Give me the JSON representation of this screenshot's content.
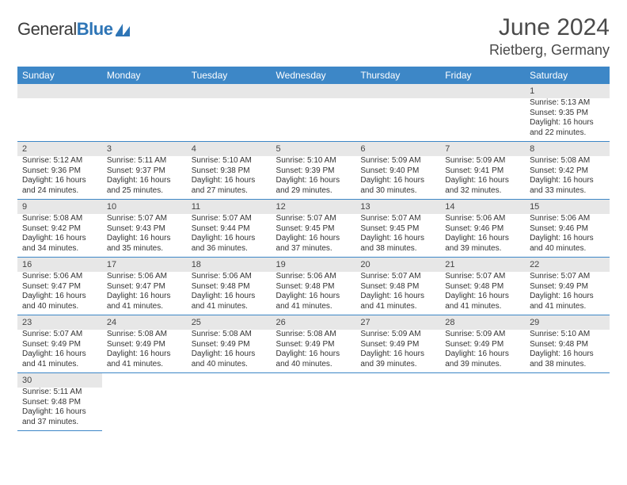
{
  "header": {
    "logo_general": "General",
    "logo_blue": "Blue",
    "month_title": "June 2024",
    "location": "Rietberg, Germany"
  },
  "colors": {
    "header_bg": "#3d87c7",
    "header_fg": "#ffffff",
    "daynum_bg": "#e7e7e7",
    "rule": "#3d87c7",
    "logo_blue": "#2e75b6"
  },
  "weekdays": [
    "Sunday",
    "Monday",
    "Tuesday",
    "Wednesday",
    "Thursday",
    "Friday",
    "Saturday"
  ],
  "weeks": [
    [
      null,
      null,
      null,
      null,
      null,
      null,
      {
        "n": "1",
        "sr": "Sunrise: 5:13 AM",
        "ss": "Sunset: 9:35 PM",
        "dl": "Daylight: 16 hours and 22 minutes."
      }
    ],
    [
      {
        "n": "2",
        "sr": "Sunrise: 5:12 AM",
        "ss": "Sunset: 9:36 PM",
        "dl": "Daylight: 16 hours and 24 minutes."
      },
      {
        "n": "3",
        "sr": "Sunrise: 5:11 AM",
        "ss": "Sunset: 9:37 PM",
        "dl": "Daylight: 16 hours and 25 minutes."
      },
      {
        "n": "4",
        "sr": "Sunrise: 5:10 AM",
        "ss": "Sunset: 9:38 PM",
        "dl": "Daylight: 16 hours and 27 minutes."
      },
      {
        "n": "5",
        "sr": "Sunrise: 5:10 AM",
        "ss": "Sunset: 9:39 PM",
        "dl": "Daylight: 16 hours and 29 minutes."
      },
      {
        "n": "6",
        "sr": "Sunrise: 5:09 AM",
        "ss": "Sunset: 9:40 PM",
        "dl": "Daylight: 16 hours and 30 minutes."
      },
      {
        "n": "7",
        "sr": "Sunrise: 5:09 AM",
        "ss": "Sunset: 9:41 PM",
        "dl": "Daylight: 16 hours and 32 minutes."
      },
      {
        "n": "8",
        "sr": "Sunrise: 5:08 AM",
        "ss": "Sunset: 9:42 PM",
        "dl": "Daylight: 16 hours and 33 minutes."
      }
    ],
    [
      {
        "n": "9",
        "sr": "Sunrise: 5:08 AM",
        "ss": "Sunset: 9:42 PM",
        "dl": "Daylight: 16 hours and 34 minutes."
      },
      {
        "n": "10",
        "sr": "Sunrise: 5:07 AM",
        "ss": "Sunset: 9:43 PM",
        "dl": "Daylight: 16 hours and 35 minutes."
      },
      {
        "n": "11",
        "sr": "Sunrise: 5:07 AM",
        "ss": "Sunset: 9:44 PM",
        "dl": "Daylight: 16 hours and 36 minutes."
      },
      {
        "n": "12",
        "sr": "Sunrise: 5:07 AM",
        "ss": "Sunset: 9:45 PM",
        "dl": "Daylight: 16 hours and 37 minutes."
      },
      {
        "n": "13",
        "sr": "Sunrise: 5:07 AM",
        "ss": "Sunset: 9:45 PM",
        "dl": "Daylight: 16 hours and 38 minutes."
      },
      {
        "n": "14",
        "sr": "Sunrise: 5:06 AM",
        "ss": "Sunset: 9:46 PM",
        "dl": "Daylight: 16 hours and 39 minutes."
      },
      {
        "n": "15",
        "sr": "Sunrise: 5:06 AM",
        "ss": "Sunset: 9:46 PM",
        "dl": "Daylight: 16 hours and 40 minutes."
      }
    ],
    [
      {
        "n": "16",
        "sr": "Sunrise: 5:06 AM",
        "ss": "Sunset: 9:47 PM",
        "dl": "Daylight: 16 hours and 40 minutes."
      },
      {
        "n": "17",
        "sr": "Sunrise: 5:06 AM",
        "ss": "Sunset: 9:47 PM",
        "dl": "Daylight: 16 hours and 41 minutes."
      },
      {
        "n": "18",
        "sr": "Sunrise: 5:06 AM",
        "ss": "Sunset: 9:48 PM",
        "dl": "Daylight: 16 hours and 41 minutes."
      },
      {
        "n": "19",
        "sr": "Sunrise: 5:06 AM",
        "ss": "Sunset: 9:48 PM",
        "dl": "Daylight: 16 hours and 41 minutes."
      },
      {
        "n": "20",
        "sr": "Sunrise: 5:07 AM",
        "ss": "Sunset: 9:48 PM",
        "dl": "Daylight: 16 hours and 41 minutes."
      },
      {
        "n": "21",
        "sr": "Sunrise: 5:07 AM",
        "ss": "Sunset: 9:48 PM",
        "dl": "Daylight: 16 hours and 41 minutes."
      },
      {
        "n": "22",
        "sr": "Sunrise: 5:07 AM",
        "ss": "Sunset: 9:49 PM",
        "dl": "Daylight: 16 hours and 41 minutes."
      }
    ],
    [
      {
        "n": "23",
        "sr": "Sunrise: 5:07 AM",
        "ss": "Sunset: 9:49 PM",
        "dl": "Daylight: 16 hours and 41 minutes."
      },
      {
        "n": "24",
        "sr": "Sunrise: 5:08 AM",
        "ss": "Sunset: 9:49 PM",
        "dl": "Daylight: 16 hours and 41 minutes."
      },
      {
        "n": "25",
        "sr": "Sunrise: 5:08 AM",
        "ss": "Sunset: 9:49 PM",
        "dl": "Daylight: 16 hours and 40 minutes."
      },
      {
        "n": "26",
        "sr": "Sunrise: 5:08 AM",
        "ss": "Sunset: 9:49 PM",
        "dl": "Daylight: 16 hours and 40 minutes."
      },
      {
        "n": "27",
        "sr": "Sunrise: 5:09 AM",
        "ss": "Sunset: 9:49 PM",
        "dl": "Daylight: 16 hours and 39 minutes."
      },
      {
        "n": "28",
        "sr": "Sunrise: 5:09 AM",
        "ss": "Sunset: 9:49 PM",
        "dl": "Daylight: 16 hours and 39 minutes."
      },
      {
        "n": "29",
        "sr": "Sunrise: 5:10 AM",
        "ss": "Sunset: 9:48 PM",
        "dl": "Daylight: 16 hours and 38 minutes."
      }
    ],
    [
      {
        "n": "30",
        "sr": "Sunrise: 5:11 AM",
        "ss": "Sunset: 9:48 PM",
        "dl": "Daylight: 16 hours and 37 minutes."
      },
      null,
      null,
      null,
      null,
      null,
      null
    ]
  ]
}
